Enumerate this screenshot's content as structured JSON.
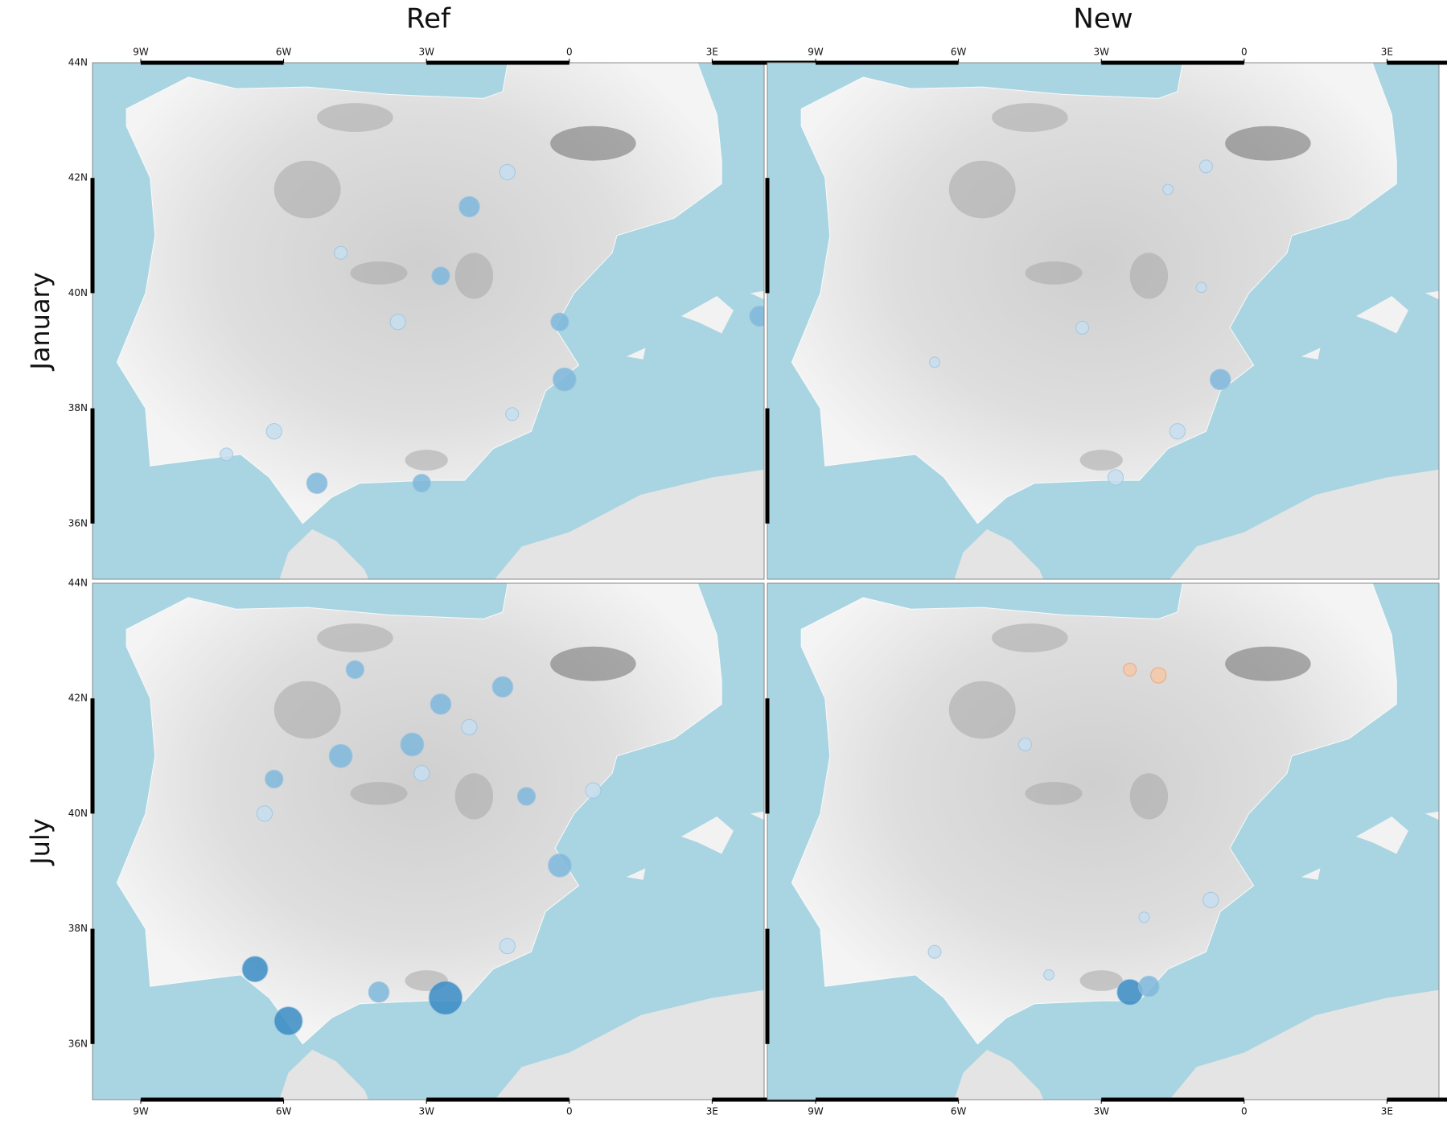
{
  "columns": [
    "Ref",
    "New"
  ],
  "rows": [
    "January",
    "July"
  ],
  "lon_labels": [
    "9W",
    "6W",
    "3W",
    "0",
    "3E"
  ],
  "lat_labels": [
    "44N",
    "42N",
    "40N",
    "38N",
    "36N"
  ]
}
